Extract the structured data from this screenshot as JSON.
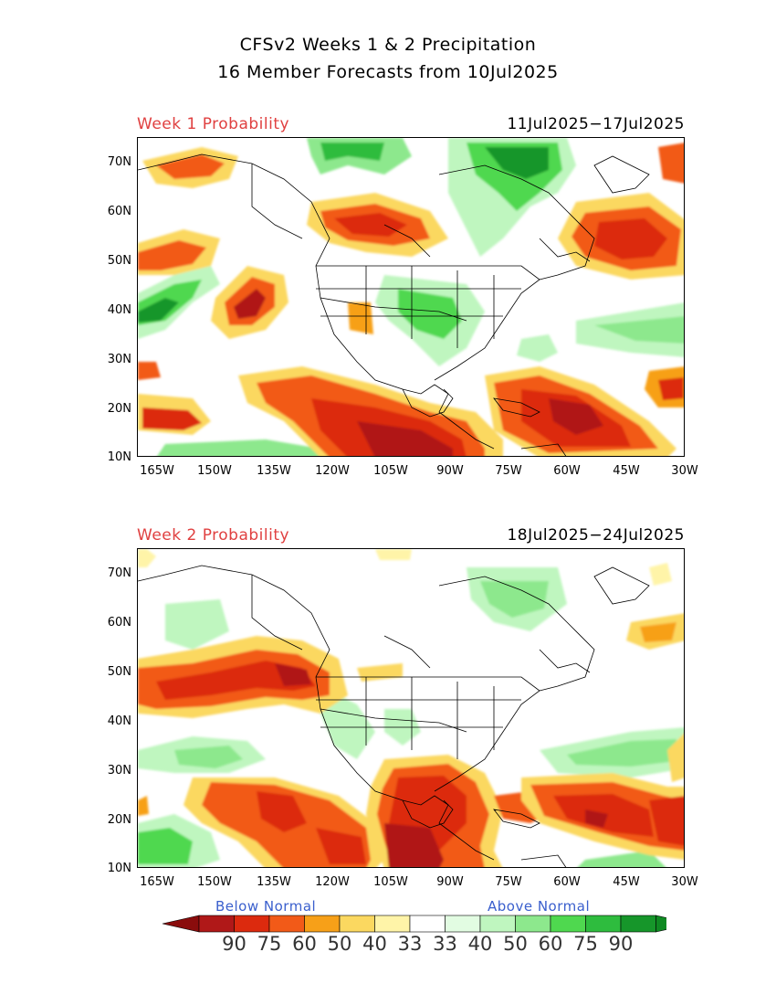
{
  "title": {
    "line1": "CFSv2 Weeks 1 & 2 Precipitation",
    "line2": "16 Member Forecasts from 10Jul2025"
  },
  "panels": [
    {
      "label": "Week 1 Probability",
      "dates": "11Jul2025−17Jul2025"
    },
    {
      "label": "Week 2 Probability",
      "dates": "18Jul2025−24Jul2025"
    }
  ],
  "axes": {
    "lat_ticks": [
      "70N",
      "60N",
      "50N",
      "40N",
      "30N",
      "20N",
      "10N"
    ],
    "lon_ticks": [
      "165W",
      "150W",
      "135W",
      "120W",
      "105W",
      "90W",
      "75W",
      "60W",
      "45W",
      "30W"
    ]
  },
  "legend": {
    "below_label": "Below Normal",
    "above_label": "Above Normal",
    "values": [
      "90",
      "75",
      "60",
      "50",
      "40",
      "33",
      "33",
      "40",
      "50",
      "60",
      "75",
      "90"
    ],
    "colors": [
      "#b01818",
      "#dc2a0e",
      "#f25a18",
      "#f7a018",
      "#fbd860",
      "#fff4a8",
      "#ffffff",
      "#e2fce2",
      "#bff6bf",
      "#8de88d",
      "#4fd84f",
      "#2ebc3e",
      "#16962a"
    ],
    "below_arrow_color": "#8a0c0c",
    "above_arrow_color": "#0f8a22"
  },
  "colors": {
    "below_normal_scale": [
      "#fff4a8",
      "#fbd860",
      "#f7a018",
      "#f25a18",
      "#dc2a0e",
      "#b01818"
    ],
    "above_normal_scale": [
      "#e2fce2",
      "#bff6bf",
      "#8de88d",
      "#4fd84f",
      "#2ebc3e",
      "#16962a"
    ]
  }
}
